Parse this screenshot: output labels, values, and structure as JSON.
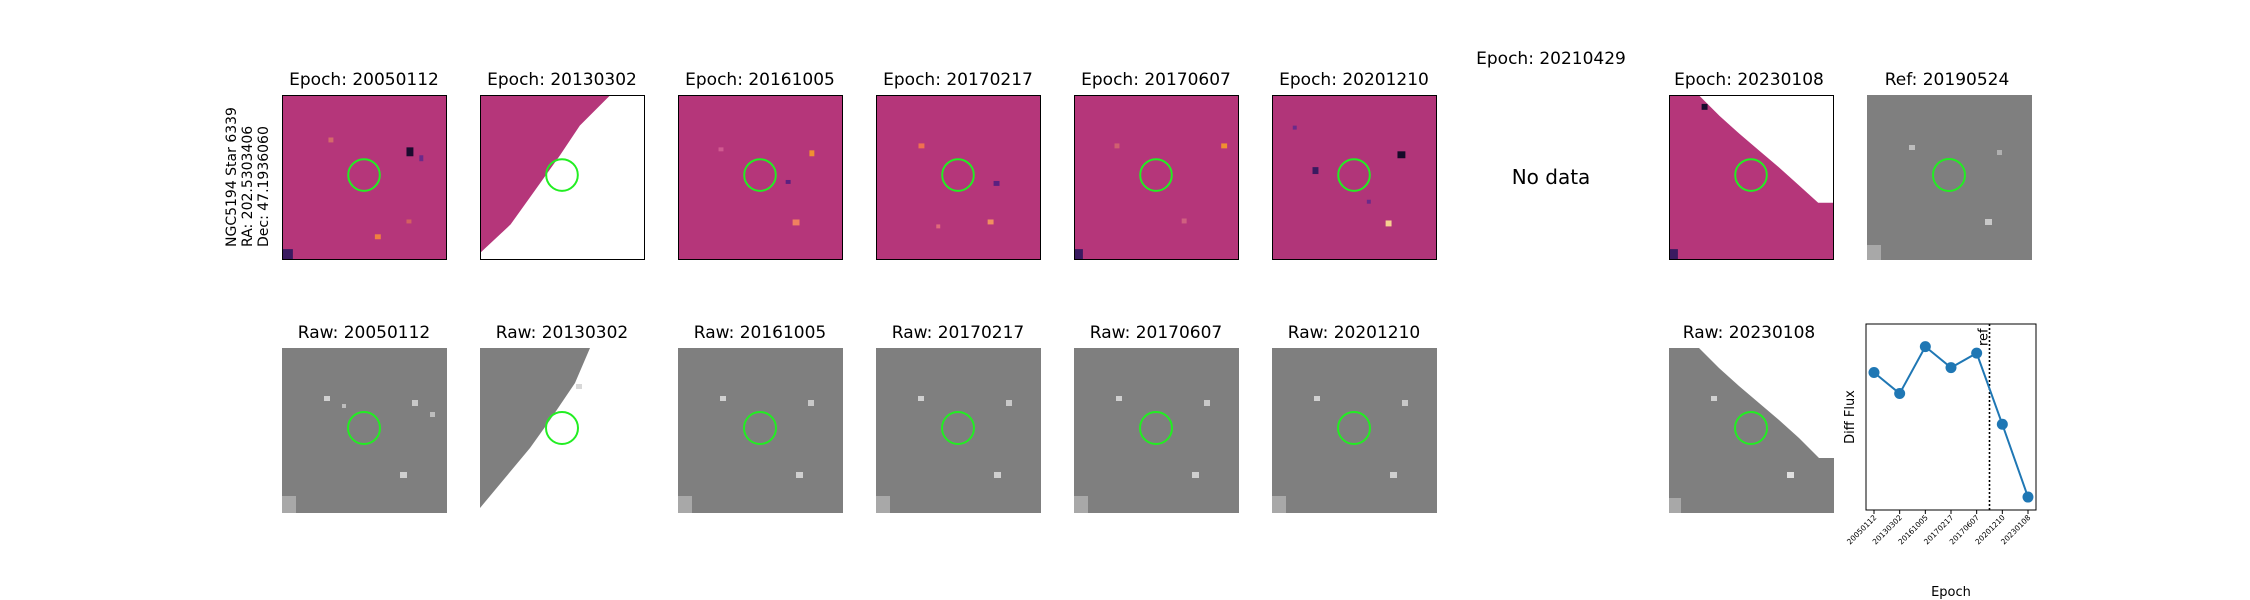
{
  "star_label": {
    "name": "NGC5194 Star 6339",
    "ra": "RA: 202.5303406",
    "dec": "Dec: 47.1936060"
  },
  "diff_titles": [
    "Epoch: 20050112",
    "Epoch: 20130302",
    "Epoch: 20161005",
    "Epoch: 20170217",
    "Epoch: 20170607",
    "Epoch: 20201210",
    "Epoch: 20210429",
    "Epoch: 20230108",
    "Ref: 20190524"
  ],
  "raw_titles": [
    "Raw: 20050112",
    "Raw: 20130302",
    "Raw: 20161005",
    "Raw: 20170217",
    "Raw: 20170607",
    "Raw: 20201210",
    "Raw: 20230108"
  ],
  "no_data_text": "No data",
  "colors": {
    "diff_bg": "#b5367a",
    "raw_bg": "#7f7f7f",
    "circle": "#22ee22",
    "line": "#1f77b4"
  },
  "chart_data": {
    "type": "line",
    "title": "",
    "xlabel": "Epoch",
    "ylabel": "Diff Flux",
    "categories": [
      "20050112",
      "20130302",
      "20161005",
      "20170217",
      "20170607",
      "20201210",
      "20230108"
    ],
    "series": [
      {
        "name": "Diff Flux",
        "values": [
          0.65,
          0.52,
          0.81,
          0.68,
          0.77,
          0.33,
          -0.12
        ]
      }
    ],
    "ylim": [
      -0.2,
      0.95
    ],
    "ref_marker": {
      "label": "ref",
      "position": "between 20170607 and 20201210"
    },
    "yticks_shown": false
  }
}
